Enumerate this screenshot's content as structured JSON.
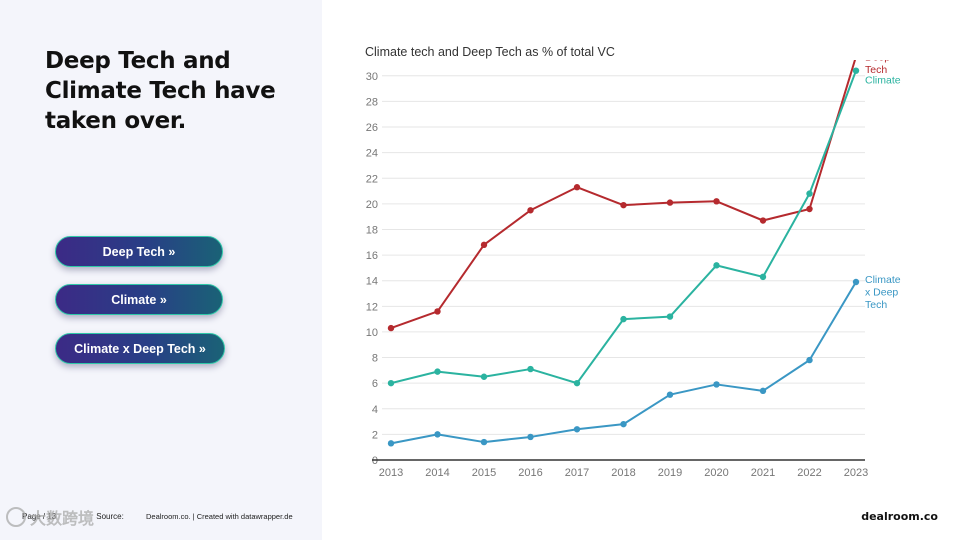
{
  "headline": "Deep Tech and Climate Tech have taken over.",
  "nav_buttons": [
    {
      "label": "Deep Tech »"
    },
    {
      "label": "Climate »"
    },
    {
      "label": "Climate x Deep Tech »"
    }
  ],
  "footer": {
    "page": "Page / 13",
    "source_label": "Source:",
    "source": "Dealroom.co. | Created with datawrapper.de",
    "brand": "dealroom.co",
    "watermark": "大数跨境"
  },
  "colors": {
    "deep_tech": "#b52a2e",
    "climate": "#2bb3a0",
    "climate_x_deep_tech": "#3a97c4",
    "grid": "#e6e6e6",
    "axis": "#333333"
  },
  "chart_data": {
    "type": "line",
    "title": "Climate tech and Deep Tech as % of total VC",
    "xlabel": "",
    "ylabel": "",
    "x": [
      "2013",
      "2014",
      "2015",
      "2016",
      "2017",
      "2018",
      "2019",
      "2020",
      "2021",
      "2022",
      "2023"
    ],
    "ylim": [
      0,
      31
    ],
    "yticks": [
      0,
      2,
      4,
      6,
      8,
      10,
      12,
      14,
      16,
      18,
      20,
      22,
      24,
      26,
      28,
      30
    ],
    "grid": true,
    "series": [
      {
        "name": "Deep Tech",
        "label_lines": [
          "Deep",
          "Tech"
        ],
        "color": "#b52a2e",
        "values": [
          10.3,
          11.6,
          16.8,
          19.5,
          21.3,
          19.9,
          20.1,
          20.2,
          18.7,
          19.6,
          31.5
        ]
      },
      {
        "name": "Climate",
        "label_lines": [
          "Climate"
        ],
        "color": "#2bb3a0",
        "values": [
          6.0,
          6.9,
          6.5,
          7.1,
          6.0,
          11.0,
          11.2,
          15.2,
          14.3,
          20.8,
          30.4
        ]
      },
      {
        "name": "Climate x Deep Tech",
        "label_lines": [
          "Climate",
          "x Deep",
          "Tech"
        ],
        "color": "#3a97c4",
        "values": [
          1.3,
          2.0,
          1.4,
          1.8,
          2.4,
          2.8,
          5.1,
          5.9,
          5.4,
          7.8,
          13.9
        ]
      }
    ]
  }
}
